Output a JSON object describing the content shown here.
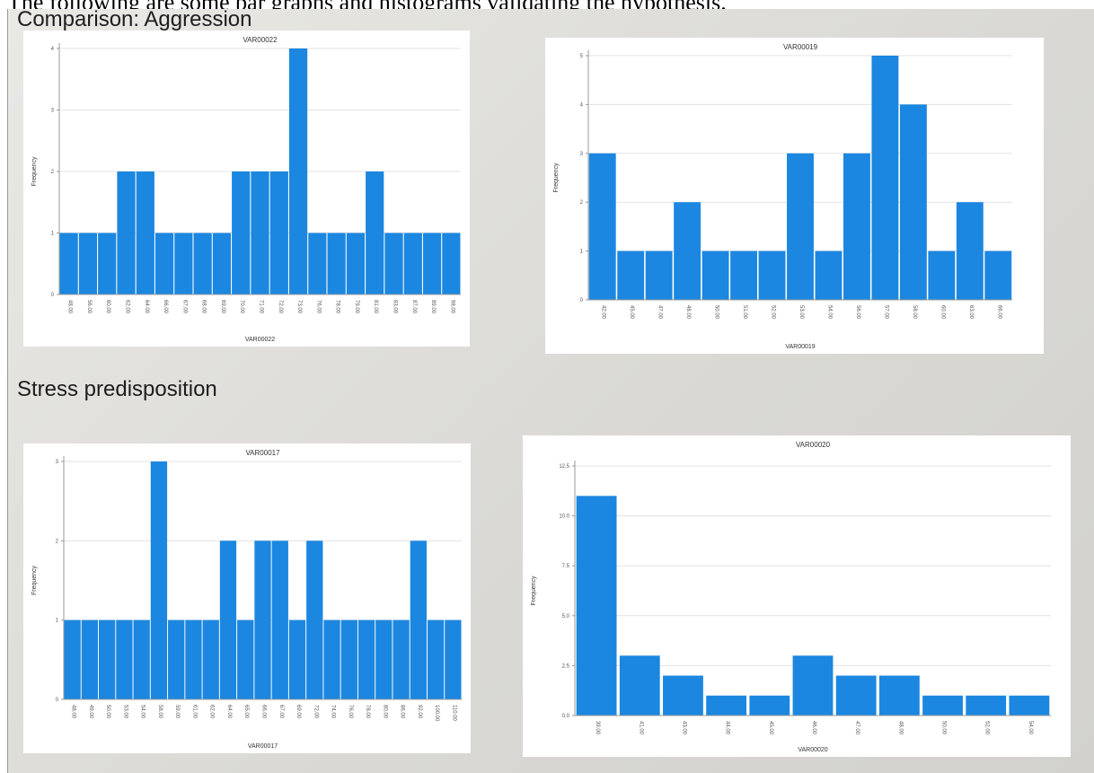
{
  "caption": "The following are some bar graphs and histograms validating the hypothesis.",
  "sections": {
    "top": "Comparison: Aggression",
    "bottom": "Stress predisposition"
  },
  "colors": {
    "bar": "#1b87e0",
    "grid": "#e3e3e3",
    "axis": "#9a9a9a"
  },
  "chart_data": [
    {
      "type": "bar",
      "title": "VAR00022",
      "xlabel": "VAR00022",
      "ylabel": "Frequency",
      "ylim": [
        0,
        4
      ],
      "yticks": [
        "0",
        "1",
        "2",
        "3",
        "4"
      ],
      "categories": [
        "48.00",
        "56.00",
        "60.00",
        "62.00",
        "64.00",
        "66.00",
        "67.00",
        "68.00",
        "69.00",
        "70.00",
        "71.00",
        "72.00",
        "73.00",
        "76.00",
        "78.00",
        "79.00",
        "81.00",
        "83.00",
        "87.00",
        "89.00",
        "98.00"
      ],
      "values": [
        1,
        1,
        1,
        2,
        2,
        1,
        1,
        1,
        1,
        2,
        2,
        2,
        4,
        1,
        1,
        1,
        2,
        1,
        1,
        1,
        1
      ]
    },
    {
      "type": "bar",
      "title": "VAR00019",
      "xlabel": "VAR00019",
      "ylabel": "Frequency",
      "ylim": [
        0,
        5
      ],
      "yticks": [
        "0",
        "1",
        "2",
        "3",
        "4",
        "5"
      ],
      "categories": [
        "42.00",
        "45.00",
        "47.00",
        "48.00",
        "50.00",
        "51.00",
        "52.00",
        "53.00",
        "54.00",
        "56.00",
        "57.00",
        "58.00",
        "60.00",
        "63.00",
        "66.00"
      ],
      "values": [
        3,
        1,
        1,
        2,
        1,
        1,
        1,
        3,
        1,
        3,
        5,
        4,
        1,
        2,
        1
      ]
    },
    {
      "type": "bar",
      "title": "VAR00017",
      "xlabel": "VAR00017",
      "ylabel": "Frequency",
      "ylim": [
        0,
        3
      ],
      "yticks": [
        "0",
        "1",
        "2",
        "3"
      ],
      "categories": [
        "48.00",
        "49.00",
        "50.00",
        "53.00",
        "54.00",
        "58.00",
        "59.00",
        "61.00",
        "62.00",
        "64.00",
        "65.00",
        "66.00",
        "67.00",
        "69.00",
        "72.00",
        "74.00",
        "76.00",
        "78.00",
        "80.00",
        "86.00",
        "92.00",
        "100.00",
        "110.00"
      ],
      "values": [
        1,
        1,
        1,
        1,
        1,
        3,
        1,
        1,
        1,
        2,
        1,
        2,
        2,
        1,
        2,
        1,
        1,
        1,
        1,
        1,
        2,
        1,
        1
      ]
    },
    {
      "type": "bar",
      "title": "VAR00020",
      "xlabel": "VAR00020",
      "ylabel": "Frequency",
      "ylim": [
        0,
        12.5
      ],
      "yticks": [
        "0.0",
        "2.5",
        "5.0",
        "7.5",
        "10.0",
        "12.5"
      ],
      "categories": [
        "39.00",
        "41.00",
        "43.00",
        "44.00",
        "45.00",
        "46.00",
        "47.00",
        "48.00",
        "50.00",
        "52.00",
        "54.00"
      ],
      "values": [
        11,
        3,
        2,
        1,
        1,
        3,
        2,
        2,
        1,
        1,
        1
      ]
    }
  ]
}
